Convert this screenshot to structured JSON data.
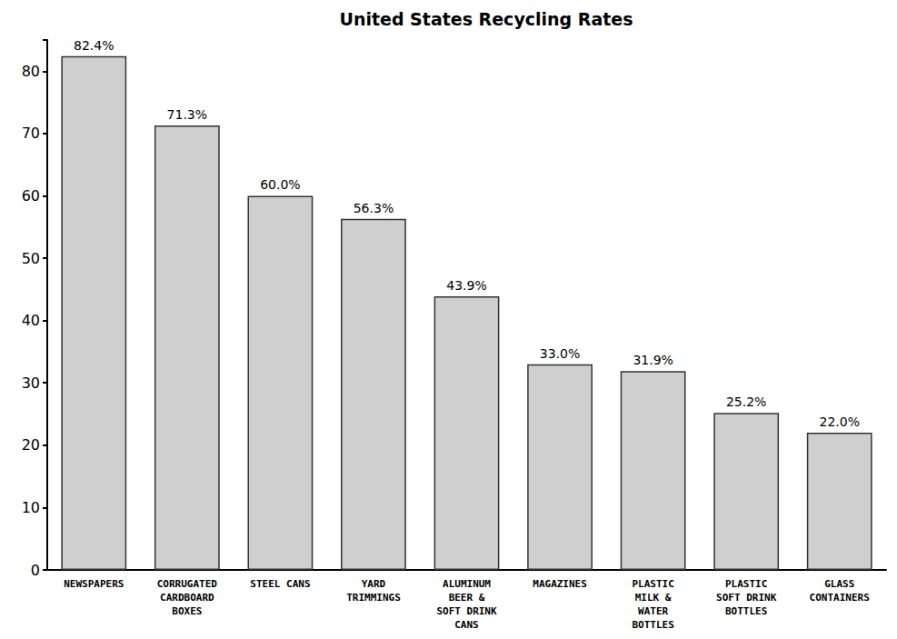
{
  "chart_data": {
    "type": "bar",
    "title": "United States Recycling Rates",
    "categories": [
      "NEWSPAPERS",
      "CORRUGATED CARDBOARD BOXES",
      "STEEL CANS",
      "YARD TRIMMINGS",
      "ALUMINUM BEER & SOFT DRINK CANS",
      "MAGAZINES",
      "PLASTIC MILK & WATER BOTTLES",
      "PLASTIC SOFT DRINK BOTTLES",
      "GLASS CONTAINERS"
    ],
    "values": [
      82.4,
      71.3,
      60.0,
      56.3,
      43.9,
      33.0,
      31.9,
      25.2,
      22.0
    ],
    "value_labels": [
      "82.4%",
      "71.3%",
      "60.0%",
      "56.3%",
      "43.9%",
      "33.0%",
      "31.9%",
      "25.2%",
      "22.0%"
    ],
    "color": "#cfcfcf",
    "ylim": [
      0,
      85
    ],
    "yticks": [
      0,
      10,
      20,
      30,
      40,
      50,
      60,
      70,
      80
    ],
    "grid": false,
    "data_labels": true
  }
}
